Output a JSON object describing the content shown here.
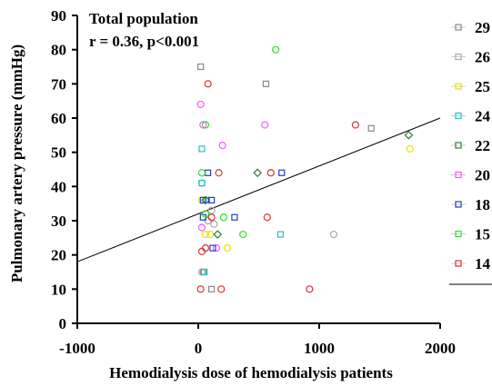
{
  "chart_data": {
    "type": "scatter",
    "xlabel": "Hemodialysis dose of hemodialysis patients",
    "ylabel": "Pulmonary artery pressure (mmHg)",
    "xlim": [
      -1000,
      2000
    ],
    "ylim": [
      0,
      90
    ],
    "x_ticks": [
      "-1000",
      "0",
      "1000",
      "2000"
    ],
    "y_ticks": [
      "0",
      "10",
      "20",
      "30",
      "40",
      "50",
      "60",
      "70",
      "80",
      "90"
    ],
    "annotations": [
      "Total population",
      "r = 0.36, p<0.001"
    ],
    "grid": false,
    "legend_position": "right",
    "legend_labels": [
      "29",
      "26",
      "25",
      "24",
      "22",
      "20",
      "18",
      "15",
      "14"
    ],
    "trendline": {
      "x": [
        -1000,
        2000
      ],
      "y": [
        18,
        60
      ]
    },
    "series": [
      {
        "name": "29",
        "color": "#888888",
        "marker": "square",
        "points": [
          [
            20,
            75
          ],
          [
            560,
            70
          ],
          [
            1430,
            57
          ],
          [
            40,
            15
          ],
          [
            110,
            10
          ]
        ]
      },
      {
        "name": "26",
        "color": "#aaaaaa",
        "marker": "circle",
        "points": [
          [
            30,
            41
          ],
          [
            110,
            33
          ],
          [
            130,
            29
          ],
          [
            1120,
            26
          ],
          [
            30,
            15
          ],
          [
            80,
            30
          ]
        ]
      },
      {
        "name": "25",
        "color": "#e6e600",
        "marker": "circle",
        "points": [
          [
            1750,
            51
          ],
          [
            240,
            22
          ],
          [
            60,
            26
          ],
          [
            100,
            26
          ],
          [
            30,
            36
          ]
        ]
      },
      {
        "name": "24",
        "color": "#1fc3c3",
        "marker": "square",
        "points": [
          [
            30,
            51
          ],
          [
            30,
            41
          ],
          [
            680,
            26
          ],
          [
            70,
            36
          ],
          [
            50,
            15
          ]
        ]
      },
      {
        "name": "22",
        "color": "#2e7d32",
        "marker": "diamond",
        "points": [
          [
            490,
            44
          ],
          [
            1740,
            55
          ],
          [
            60,
            36
          ],
          [
            160,
            26
          ]
        ]
      },
      {
        "name": "20",
        "color": "#ff55ff",
        "marker": "circle",
        "points": [
          [
            20,
            64
          ],
          [
            200,
            52
          ],
          [
            550,
            58
          ],
          [
            30,
            28
          ],
          [
            40,
            58
          ],
          [
            150,
            22
          ]
        ]
      },
      {
        "name": "18",
        "color": "#1f3fbf",
        "marker": "square",
        "points": [
          [
            690,
            44
          ],
          [
            40,
            31
          ],
          [
            300,
            31
          ],
          [
            120,
            22
          ],
          [
            80,
            44
          ],
          [
            110,
            36
          ],
          [
            40,
            36
          ]
        ]
      },
      {
        "name": "15",
        "color": "#33dd33",
        "marker": "circle",
        "points": [
          [
            640,
            80
          ],
          [
            60,
            58
          ],
          [
            210,
            31
          ],
          [
            370,
            26
          ],
          [
            30,
            44
          ],
          [
            60,
            32
          ]
        ]
      },
      {
        "name": "14",
        "color": "#dd3333",
        "marker": "circle",
        "points": [
          [
            80,
            70
          ],
          [
            1300,
            58
          ],
          [
            600,
            44
          ],
          [
            570,
            31
          ],
          [
            170,
            44
          ],
          [
            30,
            21
          ],
          [
            20,
            10
          ],
          [
            190,
            10
          ],
          [
            920,
            10
          ],
          [
            60,
            22
          ],
          [
            110,
            31
          ]
        ]
      }
    ]
  }
}
